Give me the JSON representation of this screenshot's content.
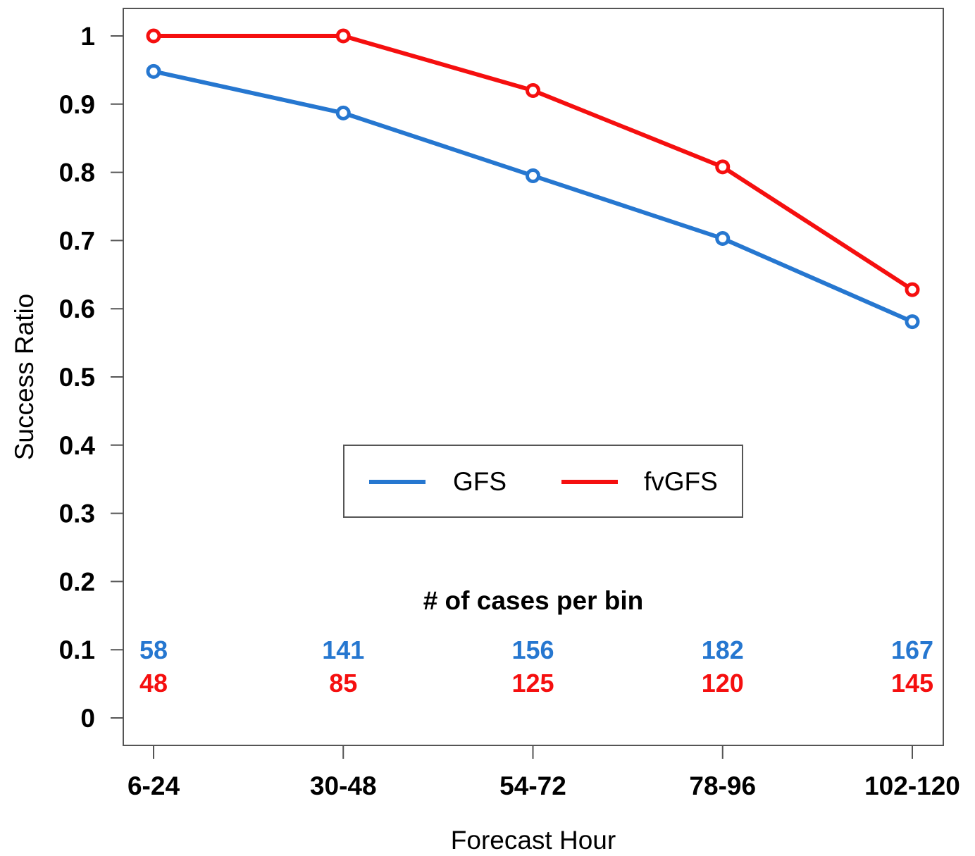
{
  "colors": {
    "GFS": "#2677d0",
    "fvGFS": "#f50f0f",
    "frame": "#555555",
    "text": "#000000"
  },
  "chart_data": {
    "type": "line",
    "title": "",
    "xlabel": "Forecast Hour",
    "ylabel": "Success Ratio",
    "categories": [
      "6-24",
      "30-48",
      "54-72",
      "78-96",
      "102-120"
    ],
    "ylim": [
      -0.04,
      1.04
    ],
    "yticks": [
      0,
      0.1,
      0.2,
      0.3,
      0.4,
      0.5,
      0.6,
      0.7,
      0.8,
      0.9,
      1
    ],
    "ytick_labels": [
      "0",
      "0.1",
      "0.2",
      "0.3",
      "0.4",
      "0.5",
      "0.6",
      "0.7",
      "0.8",
      "0.9",
      "1"
    ],
    "grid": false,
    "legend_position": "center",
    "series": [
      {
        "name": "GFS",
        "color": "#2677d0",
        "values": [
          0.948,
          0.887,
          0.795,
          0.703,
          0.581
        ],
        "counts": [
          "58",
          "141",
          "156",
          "182",
          "167"
        ]
      },
      {
        "name": "fvGFS",
        "color": "#f50f0f",
        "values": [
          1.0,
          1.0,
          0.92,
          0.808,
          0.628
        ],
        "counts": [
          "48",
          "85",
          "125",
          "120",
          "145"
        ]
      }
    ],
    "annotation": "# of cases per bin"
  }
}
